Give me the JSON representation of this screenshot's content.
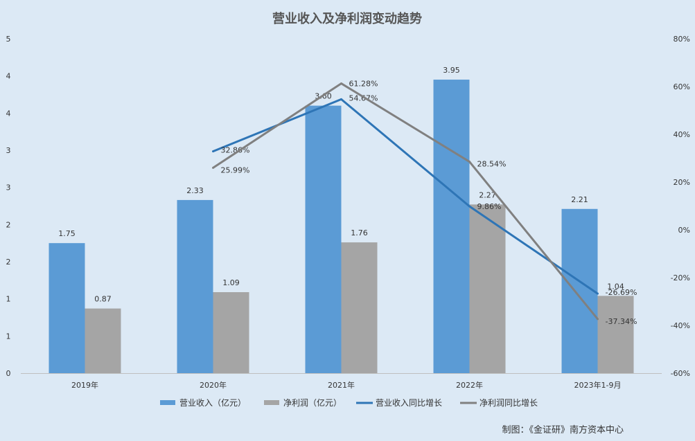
{
  "chart_data": {
    "type": "bar",
    "title": "营业收入及净利润变动趋势",
    "categories": [
      "2019年",
      "2020年",
      "2021年",
      "2022年",
      "2023年1-9月"
    ],
    "series": [
      {
        "name": "营业收入（亿元）",
        "type": "bar",
        "axis": "left",
        "color": "#5b9bd5",
        "values": [
          1.75,
          2.33,
          3.6,
          3.95,
          2.21
        ],
        "labels": [
          "1.75",
          "2.33",
          "3.60",
          "3.95",
          "2.21"
        ]
      },
      {
        "name": "净利润（亿元）",
        "type": "bar",
        "axis": "left",
        "color": "#a5a5a5",
        "values": [
          0.87,
          1.09,
          1.76,
          2.27,
          1.04
        ],
        "labels": [
          "0.87",
          "1.09",
          "1.76",
          "2.27",
          "1.04"
        ]
      },
      {
        "name": "营业收入同比增长",
        "type": "line",
        "axis": "right",
        "color": "#2e75b6",
        "values": [
          null,
          32.86,
          54.67,
          9.86,
          -26.69
        ],
        "labels": [
          "",
          "32.86%",
          "54.67%",
          "9.86%",
          "-26.69%"
        ]
      },
      {
        "name": "净利润同比增长",
        "type": "line",
        "axis": "right",
        "color": "#808080",
        "values": [
          null,
          25.99,
          61.28,
          28.54,
          -37.34
        ],
        "labels": [
          "",
          "25.99%",
          "61.28%",
          "28.54%",
          "-37.34%"
        ]
      }
    ],
    "y_left": {
      "range": [
        0,
        4.5
      ],
      "tick_values": [
        0,
        0.5,
        1,
        1.5,
        2,
        2.5,
        3,
        3.5,
        4,
        4.5
      ],
      "tick_labels": [
        "0",
        "1",
        "1",
        "2",
        "2",
        "3",
        "3",
        "4",
        "4",
        "5"
      ]
    },
    "y_right": {
      "range": [
        -60,
        80
      ],
      "tick_values": [
        -60,
        -40,
        -20,
        0,
        20,
        40,
        60,
        80
      ],
      "tick_labels": [
        "-60%",
        "-40%",
        "-20%",
        "0%",
        "20%",
        "40%",
        "60%",
        "80%"
      ]
    },
    "grid": false,
    "legend_position": "bottom"
  },
  "credit": "制图：《金证研》南方资本中心",
  "colors": {
    "background": "#dce9f5",
    "text": "#333333",
    "title": "#555555"
  }
}
